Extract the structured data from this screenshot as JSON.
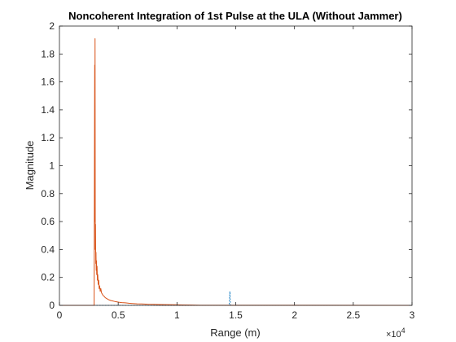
{
  "chart_data": {
    "type": "line",
    "title": "Noncoherent Integration of 1st Pulse at the ULA (Without Jammer)",
    "xlabel": "Range (m)",
    "ylabel": "Magnitude",
    "xlim": [
      0,
      30000
    ],
    "ylim": [
      0,
      2
    ],
    "x_exponent_label": "×10",
    "x_exponent_power": "4",
    "x_ticks": [
      {
        "value": 0,
        "label": "0"
      },
      {
        "value": 5000,
        "label": "0.5"
      },
      {
        "value": 10000,
        "label": "1"
      },
      {
        "value": 15000,
        "label": "1.5"
      },
      {
        "value": 20000,
        "label": "2"
      },
      {
        "value": 25000,
        "label": "2.5"
      },
      {
        "value": 30000,
        "label": "3"
      }
    ],
    "y_ticks": [
      {
        "value": 0,
        "label": "0"
      },
      {
        "value": 0.2,
        "label": "0.2"
      },
      {
        "value": 0.4,
        "label": "0.4"
      },
      {
        "value": 0.6,
        "label": "0.6"
      },
      {
        "value": 0.8,
        "label": "0.8"
      },
      {
        "value": 1,
        "label": "1"
      },
      {
        "value": 1.2,
        "label": "1.2"
      },
      {
        "value": 1.4,
        "label": "1.4"
      },
      {
        "value": 1.6,
        "label": "1.6"
      },
      {
        "value": 1.8,
        "label": "1.8"
      },
      {
        "value": 2,
        "label": "2"
      }
    ],
    "grid": false,
    "legend": "none",
    "series": [
      {
        "color": "#0072bd",
        "style": "dotted",
        "x": [
          0,
          14450,
          14480,
          14500,
          14520,
          14550,
          30000
        ],
        "y": [
          0,
          0,
          0.06,
          0.1,
          0.06,
          0,
          0
        ]
      },
      {
        "color": "#d95319",
        "style": "solid",
        "x": [
          0,
          2950,
          3000,
          3010,
          3030,
          3050,
          3070,
          3090,
          3110,
          3130,
          3150,
          3170,
          3200,
          3230,
          3260,
          3300,
          3340,
          3380,
          3420,
          3470,
          3520,
          3580,
          3650,
          3720,
          3800,
          3900,
          4000,
          4100,
          4200,
          4350,
          4500,
          4700,
          4900,
          5100,
          5300,
          5600,
          5900,
          6200,
          6600,
          7000,
          7500,
          8000,
          8600,
          9200,
          9800,
          10500,
          11200,
          12000,
          30000
        ],
        "y": [
          0,
          0,
          1.72,
          0.6,
          1.91,
          0.4,
          0.58,
          0.3,
          0.38,
          0.25,
          0.32,
          0.22,
          0.28,
          0.18,
          0.22,
          0.15,
          0.18,
          0.12,
          0.14,
          0.1,
          0.12,
          0.09,
          0.08,
          0.07,
          0.065,
          0.055,
          0.05,
          0.045,
          0.04,
          0.035,
          0.032,
          0.028,
          0.025,
          0.022,
          0.02,
          0.018,
          0.015,
          0.013,
          0.011,
          0.01,
          0.008,
          0.007,
          0.006,
          0.005,
          0.004,
          0.003,
          0.002,
          0.001,
          0
        ]
      }
    ]
  }
}
